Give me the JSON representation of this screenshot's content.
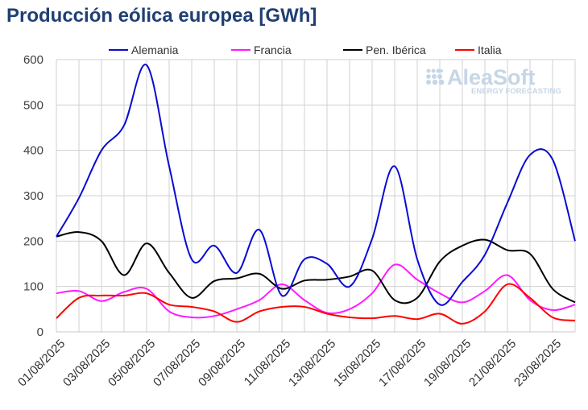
{
  "chart_data": {
    "type": "line",
    "title": "Producción eólica europea [GWh]",
    "xlabel": "",
    "ylabel": "",
    "ylim": [
      0,
      600
    ],
    "yticks": [
      0,
      100,
      200,
      300,
      400,
      500,
      600
    ],
    "grid": true,
    "legend_position": "top",
    "x": [
      "01/08/2025",
      "02/08/2025",
      "03/08/2025",
      "04/08/2025",
      "05/08/2025",
      "06/08/2025",
      "07/08/2025",
      "08/08/2025",
      "09/08/2025",
      "10/08/2025",
      "11/08/2025",
      "12/08/2025",
      "13/08/2025",
      "14/08/2025",
      "15/08/2025",
      "16/08/2025",
      "17/08/2025",
      "18/08/2025",
      "19/08/2025",
      "20/08/2025",
      "21/08/2025",
      "22/08/2025",
      "23/08/2025",
      "24/08/2025"
    ],
    "xtick_labels": [
      "01/08/2025",
      "03/08/2025",
      "05/08/2025",
      "07/08/2025",
      "09/08/2025",
      "11/08/2025",
      "13/08/2025",
      "15/08/2025",
      "17/08/2025",
      "19/08/2025",
      "21/08/2025",
      "23/08/2025"
    ],
    "series": [
      {
        "name": "Alemania",
        "color": "#0a0ad2",
        "values": [
          210,
          295,
          400,
          455,
          588,
          365,
          160,
          190,
          130,
          225,
          80,
          160,
          150,
          100,
          205,
          365,
          160,
          60,
          110,
          170,
          285,
          390,
          380,
          200
        ]
      },
      {
        "name": "Francia",
        "color": "#ff1aff",
        "values": [
          85,
          90,
          68,
          88,
          95,
          45,
          32,
          35,
          50,
          70,
          105,
          70,
          42,
          50,
          85,
          148,
          115,
          85,
          65,
          90,
          125,
          70,
          48,
          60
        ]
      },
      {
        "name": "Pen. Ibérica",
        "color": "#000000",
        "values": [
          210,
          220,
          200,
          125,
          195,
          130,
          75,
          112,
          118,
          128,
          95,
          113,
          115,
          122,
          135,
          70,
          75,
          155,
          190,
          203,
          180,
          172,
          95,
          65
        ]
      },
      {
        "name": "Italia",
        "color": "#ff0000",
        "values": [
          30,
          75,
          80,
          80,
          85,
          60,
          55,
          45,
          22,
          45,
          55,
          55,
          40,
          32,
          30,
          35,
          28,
          40,
          18,
          45,
          105,
          75,
          32,
          25
        ]
      }
    ]
  },
  "logo": {
    "name": "AleaSoft",
    "tagline": "ENERGY FORECASTING",
    "color": "#c7d6e6"
  }
}
